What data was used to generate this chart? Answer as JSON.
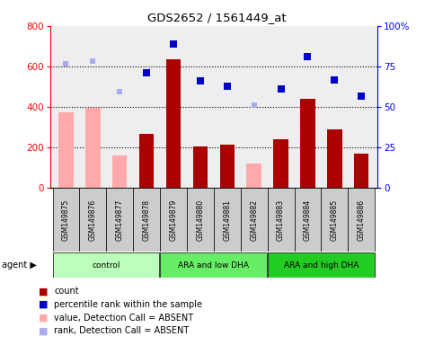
{
  "title": "GDS2652 / 1561449_at",
  "samples": [
    "GSM149875",
    "GSM149876",
    "GSM149877",
    "GSM149878",
    "GSM149879",
    "GSM149880",
    "GSM149881",
    "GSM149882",
    "GSM149883",
    "GSM149884",
    "GSM149885",
    "GSM149886"
  ],
  "count_values": [
    null,
    null,
    null,
    265,
    635,
    205,
    215,
    null,
    240,
    440,
    290,
    170
  ],
  "absent_value": [
    375,
    395,
    160,
    null,
    null,
    null,
    null,
    120,
    null,
    null,
    null,
    null
  ],
  "percentile_rank_present": [
    null,
    null,
    null,
    570,
    710,
    530,
    500,
    null,
    490,
    650,
    535,
    455
  ],
  "percentile_rank_absent": [
    615,
    625,
    475,
    null,
    null,
    null,
    null,
    410,
    null,
    null,
    null,
    null
  ],
  "ylim_left": [
    0,
    800
  ],
  "yticks_left": [
    0,
    200,
    400,
    600,
    800
  ],
  "ytick_labels_right": [
    "0",
    "25",
    "50",
    "75",
    "100%"
  ],
  "group_colors": [
    "#bbffbb",
    "#66ee66",
    "#22cc22"
  ],
  "group_labels": [
    "control",
    "ARA and low DHA",
    "ARA and high DHA"
  ],
  "group_ranges": [
    [
      0,
      4
    ],
    [
      4,
      8
    ],
    [
      8,
      12
    ]
  ],
  "bar_color_present": "#aa0000",
  "bar_color_absent": "#ffaaaa",
  "scatter_color_present": "#0000cc",
  "scatter_color_absent": "#aaaaee",
  "legend_items": [
    {
      "color": "#aa0000",
      "marker": "s",
      "label": "count"
    },
    {
      "color": "#0000cc",
      "marker": "s",
      "label": "percentile rank within the sample"
    },
    {
      "color": "#ffaaaa",
      "marker": "s",
      "label": "value, Detection Call = ABSENT"
    },
    {
      "color": "#aaaaee",
      "marker": "s",
      "label": "rank, Detection Call = ABSENT"
    }
  ]
}
